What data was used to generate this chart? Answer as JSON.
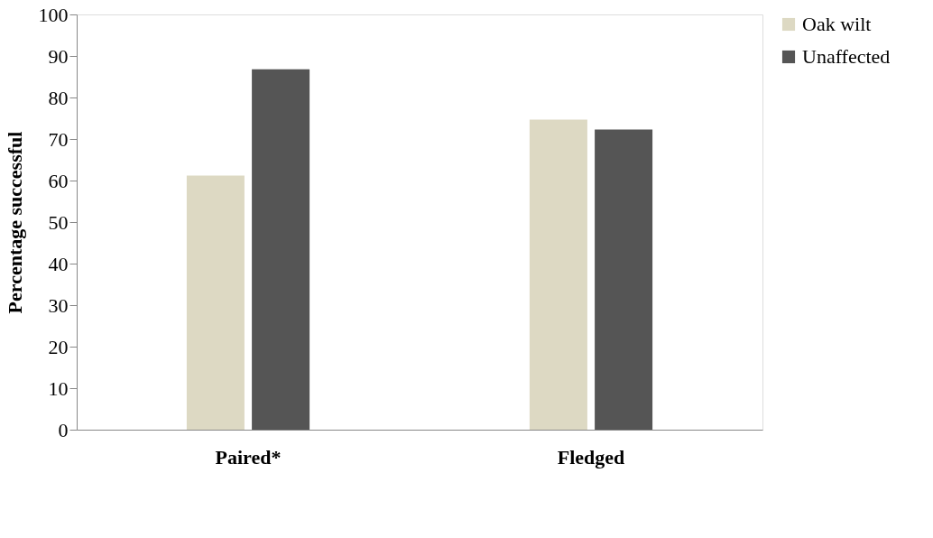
{
  "chart_data": {
    "type": "bar",
    "ylabel": "Percentage successful",
    "categories": [
      "Paired*",
      "Fledged"
    ],
    "series": [
      {
        "name": "Oak wilt",
        "color": "#ddd9c3",
        "values": [
          61.2,
          74.7
        ]
      },
      {
        "name": "Unaffected",
        "color": "#555555",
        "values": [
          86.8,
          72.3
        ]
      }
    ],
    "ylim": [
      0,
      100
    ],
    "yticks": [
      0,
      10,
      20,
      30,
      40,
      50,
      60,
      70,
      80,
      90,
      100
    ],
    "grid": false,
    "legend": "right"
  }
}
